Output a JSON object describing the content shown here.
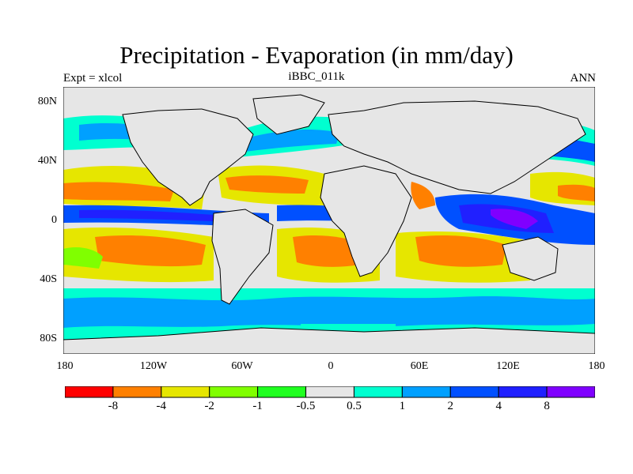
{
  "title": "Precipitation - Evaporation (in mm/day)",
  "subtitle_left": "Expt = xlcol",
  "subtitle_center": "iBBC_011k",
  "subtitle_right": "ANN",
  "y_ticks": [
    "80N",
    "40N",
    "0",
    "40S",
    "80S"
  ],
  "x_ticks": [
    "180",
    "120W",
    "60W",
    "0",
    "60E",
    "120E",
    "180"
  ],
  "colorbar": {
    "labels": [
      "-8",
      "-4",
      "-2",
      "-1",
      "-0.5",
      "0.5",
      "1",
      "2",
      "4",
      "8"
    ],
    "colors": [
      "#ff0000",
      "#ff8000",
      "#e6e600",
      "#80ff00",
      "#20ff20",
      "#e6e6e6",
      "#00ffd0",
      "#00a0ff",
      "#0050ff",
      "#2020ff",
      "#8000ff"
    ]
  },
  "land_color": "#e6e6e6"
}
